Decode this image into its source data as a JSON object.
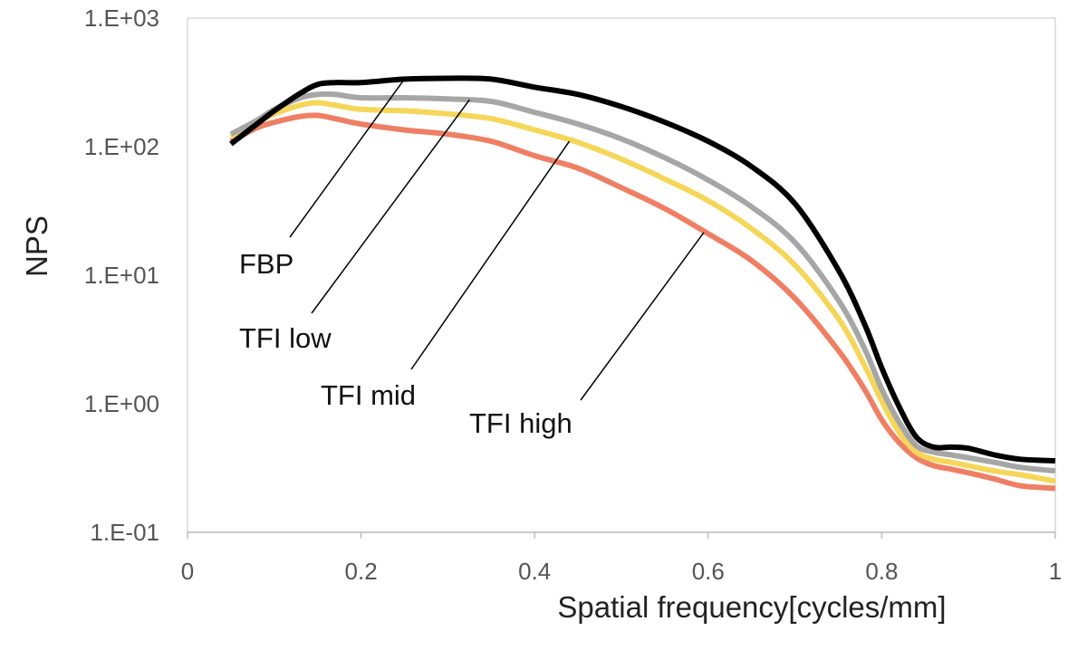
{
  "chart_data": {
    "type": "line",
    "title": "",
    "xlabel": "Spatial frequency[cycles/mm]",
    "ylabel": "NPS",
    "xlim": [
      0,
      1
    ],
    "ylim": [
      0.1,
      1000
    ],
    "yscale": "log",
    "grid": false,
    "legend": "none (series labeled by leader-line annotations)",
    "x_ticks": [
      "0",
      "0.2",
      "0.4",
      "0.6",
      "0.8",
      "1"
    ],
    "x_tick_values": [
      0,
      0.2,
      0.4,
      0.6,
      0.8,
      1
    ],
    "y_ticks": [
      "1.E-01",
      "1.E+00",
      "1.E+01",
      "1.E+02",
      "1.E+03"
    ],
    "y_tick_values": [
      0.1,
      1,
      10,
      100,
      1000
    ],
    "series": [
      {
        "name": "FBP",
        "color": "#000000",
        "x": [
          0.05,
          0.08,
          0.1,
          0.13,
          0.15,
          0.17,
          0.2,
          0.25,
          0.3,
          0.35,
          0.4,
          0.45,
          0.5,
          0.55,
          0.6,
          0.65,
          0.7,
          0.75,
          0.78,
          0.8,
          0.82,
          0.84,
          0.86,
          0.88,
          0.9,
          0.93,
          0.96,
          1.0
        ],
        "values": [
          105,
          150,
          190,
          260,
          305,
          315,
          315,
          335,
          340,
          335,
          290,
          255,
          205,
          155,
          110,
          70,
          36,
          11,
          4.2,
          1.9,
          0.95,
          0.55,
          0.46,
          0.46,
          0.45,
          0.4,
          0.37,
          0.36
        ]
      },
      {
        "name": "TFI low",
        "color": "#a6a6a6",
        "x": [
          0.05,
          0.08,
          0.1,
          0.13,
          0.15,
          0.17,
          0.2,
          0.25,
          0.3,
          0.35,
          0.4,
          0.45,
          0.5,
          0.55,
          0.6,
          0.65,
          0.7,
          0.75,
          0.78,
          0.8,
          0.82,
          0.84,
          0.86,
          0.88,
          0.9,
          0.93,
          0.96,
          1.0
        ],
        "values": [
          125,
          160,
          195,
          240,
          255,
          255,
          240,
          240,
          235,
          225,
          185,
          150,
          115,
          82,
          55,
          34,
          18,
          6.4,
          2.7,
          1.3,
          0.72,
          0.47,
          0.42,
          0.4,
          0.38,
          0.35,
          0.32,
          0.3
        ]
      },
      {
        "name": "TFI mid",
        "color": "#f5d659",
        "x": [
          0.05,
          0.08,
          0.1,
          0.13,
          0.15,
          0.17,
          0.2,
          0.25,
          0.3,
          0.35,
          0.4,
          0.45,
          0.5,
          0.55,
          0.6,
          0.65,
          0.7,
          0.75,
          0.78,
          0.8,
          0.82,
          0.84,
          0.86,
          0.88,
          0.9,
          0.93,
          0.96,
          1.0
        ],
        "values": [
          120,
          155,
          180,
          210,
          220,
          210,
          195,
          190,
          180,
          165,
          135,
          108,
          80,
          56,
          38,
          23,
          12,
          4.6,
          2.0,
          1.05,
          0.6,
          0.42,
          0.37,
          0.35,
          0.33,
          0.3,
          0.28,
          0.25
        ]
      },
      {
        "name": "TFI high",
        "color": "#ef7f64",
        "x": [
          0.05,
          0.08,
          0.1,
          0.13,
          0.15,
          0.17,
          0.2,
          0.25,
          0.3,
          0.35,
          0.4,
          0.45,
          0.5,
          0.55,
          0.6,
          0.65,
          0.7,
          0.75,
          0.78,
          0.8,
          0.82,
          0.84,
          0.86,
          0.88,
          0.9,
          0.93,
          0.96,
          1.0
        ],
        "values": [
          110,
          140,
          155,
          172,
          175,
          165,
          150,
          135,
          125,
          110,
          85,
          68,
          48,
          33,
          21,
          13,
          6.6,
          2.6,
          1.3,
          0.75,
          0.5,
          0.38,
          0.33,
          0.31,
          0.29,
          0.26,
          0.23,
          0.22
        ]
      }
    ],
    "annotations": [
      {
        "text": "FBP",
        "series": "FBP",
        "point": [
          0.25,
          336
        ]
      },
      {
        "text": "TFI low",
        "series": "TFI low",
        "point": [
          0.325,
          232
        ]
      },
      {
        "text": "TFI mid",
        "series": "TFI mid",
        "point": [
          0.44,
          110
        ]
      },
      {
        "text": "TFI high",
        "series": "TFI high",
        "point": [
          0.595,
          21.5
        ]
      }
    ]
  }
}
